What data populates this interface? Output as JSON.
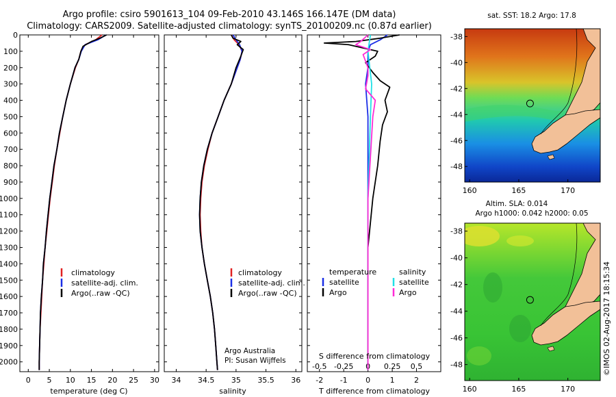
{
  "header": {
    "line1": "Argo profile: csiro 5901613_104 09-Feb-2010 43.146S 166.147E (DM data)",
    "line2": "Climatology: CARS2009. Satellite-adjusted climatology: synTS_20100209.nc (0.87d earlier)"
  },
  "credit": {
    "org": "Argo Australia",
    "pi": "PI: Susan Wijffels"
  },
  "stamp": "©IMOS 02-Aug-2017 18:15:34",
  "colors": {
    "climatology": "#e02020",
    "satellite_adj": "#1a2ee6",
    "argo": "#000000",
    "sat_salinity": "#1fe0e6",
    "argo_salinity": "#ff2bd6",
    "land": "#f2c098"
  },
  "chart_data": [
    {
      "type": "line",
      "id": "temperature",
      "xlabel": "temperature (deg C)",
      "xlim": [
        -2,
        31
      ],
      "ylim": [
        2060,
        0
      ],
      "xticks": [
        0,
        5,
        10,
        15,
        20,
        25,
        30
      ],
      "yticks": [
        0,
        100,
        200,
        300,
        400,
        500,
        600,
        700,
        800,
        900,
        1000,
        1100,
        1200,
        1300,
        1400,
        1500,
        1600,
        1700,
        1800,
        1900,
        2000
      ],
      "legend": [
        "climatology",
        "satellite-adj. clim.",
        "Argo(..raw -QC)"
      ],
      "series": [
        {
          "name": "climatology",
          "points": [
            [
              17.5,
              0
            ],
            [
              16,
              30
            ],
            [
              13.5,
              60
            ],
            [
              12.5,
              100
            ],
            [
              12,
              150
            ],
            [
              11.2,
              200
            ],
            [
              10,
              300
            ],
            [
              9,
              400
            ],
            [
              8.2,
              500
            ],
            [
              7.5,
              600
            ],
            [
              6.8,
              700
            ],
            [
              6.2,
              800
            ],
            [
              5.7,
              900
            ],
            [
              5.2,
              1000
            ],
            [
              4.8,
              1100
            ],
            [
              4.4,
              1200
            ],
            [
              4,
              1300
            ],
            [
              3.7,
              1400
            ],
            [
              3.4,
              1500
            ],
            [
              3.2,
              1600
            ],
            [
              3,
              1700
            ],
            [
              2.8,
              1800
            ],
            [
              2.7,
              1900
            ],
            [
              2.6,
              2000
            ],
            [
              2.6,
              2050
            ]
          ]
        },
        {
          "name": "satellite-adj. clim.",
          "points": [
            [
              18.5,
              0
            ],
            [
              16.5,
              30
            ],
            [
              13.5,
              60
            ],
            [
              12.6,
              100
            ],
            [
              12,
              150
            ],
            [
              11.1,
              200
            ],
            [
              10,
              300
            ],
            [
              9,
              400
            ],
            [
              8.2,
              500
            ],
            [
              7.4,
              600
            ],
            [
              6.8,
              700
            ],
            [
              6.1,
              800
            ],
            [
              5.6,
              900
            ],
            [
              5.1,
              1000
            ],
            [
              4.7,
              1100
            ],
            [
              4.3,
              1200
            ],
            [
              4,
              1300
            ],
            [
              3.6,
              1400
            ],
            [
              3.4,
              1500
            ],
            [
              3.1,
              1600
            ],
            [
              2.9,
              1700
            ],
            [
              2.8,
              1800
            ],
            [
              2.7,
              1900
            ],
            [
              2.6,
              2000
            ],
            [
              2.6,
              2050
            ]
          ]
        },
        {
          "name": "Argo(..raw -QC)",
          "points": [
            [
              18.6,
              0
            ],
            [
              17,
              20
            ],
            [
              15,
              40
            ],
            [
              13,
              70
            ],
            [
              12.5,
              100
            ],
            [
              12,
              150
            ],
            [
              11.1,
              200
            ],
            [
              10,
              300
            ],
            [
              9,
              400
            ],
            [
              8.2,
              500
            ],
            [
              7.4,
              600
            ],
            [
              6.8,
              700
            ],
            [
              6.1,
              800
            ],
            [
              5.6,
              900
            ],
            [
              5.1,
              1000
            ],
            [
              4.7,
              1100
            ],
            [
              4.3,
              1200
            ],
            [
              4,
              1300
            ],
            [
              3.6,
              1400
            ],
            [
              3.4,
              1500
            ],
            [
              3.1,
              1600
            ],
            [
              2.9,
              1700
            ],
            [
              2.8,
              1800
            ],
            [
              2.7,
              1900
            ],
            [
              2.6,
              2000
            ],
            [
              2.6,
              2050
            ]
          ]
        }
      ]
    },
    {
      "type": "line",
      "id": "salinity",
      "xlabel": "salinity",
      "xlim": [
        33.8,
        36.1
      ],
      "ylim": [
        2060,
        0
      ],
      "xticks": [
        34,
        34.5,
        35,
        35.5,
        36
      ],
      "yticks": [
        0,
        100,
        200,
        300,
        400,
        500,
        600,
        700,
        800,
        900,
        1000,
        1100,
        1200,
        1300,
        1400,
        1500,
        1600,
        1700,
        1800,
        1900,
        2000
      ],
      "legend": [
        "climatology",
        "satellite-adj. clim.",
        "Argo(..raw -QC)"
      ],
      "series": [
        {
          "name": "climatology",
          "points": [
            [
              34.92,
              0
            ],
            [
              34.97,
              30
            ],
            [
              35.05,
              60
            ],
            [
              35.1,
              100
            ],
            [
              35.07,
              150
            ],
            [
              35.02,
              200
            ],
            [
              34.92,
              300
            ],
            [
              34.8,
              400
            ],
            [
              34.7,
              500
            ],
            [
              34.6,
              600
            ],
            [
              34.53,
              700
            ],
            [
              34.47,
              800
            ],
            [
              34.43,
              900
            ],
            [
              34.41,
              1000
            ],
            [
              34.4,
              1100
            ],
            [
              34.41,
              1200
            ],
            [
              34.43,
              1300
            ],
            [
              34.47,
              1400
            ],
            [
              34.52,
              1500
            ],
            [
              34.57,
              1600
            ],
            [
              34.61,
              1700
            ],
            [
              34.64,
              1800
            ],
            [
              34.66,
              1900
            ],
            [
              34.68,
              2000
            ],
            [
              34.69,
              2050
            ]
          ]
        },
        {
          "name": "satellite-adj. clim.",
          "points": [
            [
              34.95,
              0
            ],
            [
              35.0,
              30
            ],
            [
              35.06,
              60
            ],
            [
              35.1,
              100
            ],
            [
              35.07,
              150
            ],
            [
              35.02,
              200
            ],
            [
              34.92,
              300
            ],
            [
              34.8,
              400
            ],
            [
              34.7,
              500
            ],
            [
              34.6,
              600
            ],
            [
              34.52,
              700
            ],
            [
              34.46,
              800
            ],
            [
              34.42,
              900
            ],
            [
              34.4,
              1000
            ],
            [
              34.39,
              1100
            ],
            [
              34.4,
              1200
            ],
            [
              34.43,
              1300
            ],
            [
              34.47,
              1400
            ],
            [
              34.52,
              1500
            ],
            [
              34.57,
              1600
            ],
            [
              34.61,
              1700
            ],
            [
              34.64,
              1800
            ],
            [
              34.66,
              1900
            ],
            [
              34.68,
              2000
            ],
            [
              34.69,
              2050
            ]
          ]
        },
        {
          "name": "Argo(..raw -QC)",
          "points": [
            [
              34.92,
              0
            ],
            [
              34.95,
              20
            ],
            [
              35.08,
              40
            ],
            [
              35.02,
              60
            ],
            [
              35.12,
              90
            ],
            [
              35.08,
              130
            ],
            [
              35.0,
              200
            ],
            [
              34.92,
              300
            ],
            [
              34.8,
              400
            ],
            [
              34.7,
              500
            ],
            [
              34.6,
              600
            ],
            [
              34.52,
              700
            ],
            [
              34.46,
              800
            ],
            [
              34.42,
              900
            ],
            [
              34.4,
              1000
            ],
            [
              34.39,
              1100
            ],
            [
              34.4,
              1200
            ],
            [
              34.43,
              1300
            ],
            [
              34.47,
              1400
            ],
            [
              34.52,
              1500
            ],
            [
              34.57,
              1600
            ],
            [
              34.61,
              1700
            ],
            [
              34.64,
              1800
            ],
            [
              34.66,
              1900
            ],
            [
              34.68,
              2000
            ],
            [
              34.69,
              2050
            ]
          ]
        }
      ]
    },
    {
      "type": "line",
      "id": "differences",
      "xlabel": "T difference from climatology",
      "x2label": "S difference from climatology",
      "xlim": [
        -2.5,
        3
      ],
      "ylim": [
        2060,
        0
      ],
      "xticks": [
        -2,
        -1,
        0,
        1,
        2
      ],
      "x2ticks": [
        {
          "label": "-0.5",
          "v": -2
        },
        {
          "label": "-0.25",
          "v": -1
        },
        {
          "label": "0",
          "v": 0
        },
        {
          "label": "0.25",
          "v": 1
        },
        {
          "label": "0.5",
          "v": 2
        }
      ],
      "yticks": [
        0,
        100,
        200,
        300,
        400,
        500,
        600,
        700,
        800,
        900,
        1000,
        1100,
        1200,
        1300,
        1400,
        1500,
        1600,
        1700,
        1800,
        1900,
        2000
      ],
      "legend": {
        "temperature_header": "temperature",
        "salinity_header": "salinity",
        "items": [
          "satellite",
          "Argo",
          "satellite",
          "Argo"
        ]
      },
      "series": [
        {
          "name": "satellite",
          "group": "temperature",
          "points": [
            [
              0.8,
              0
            ],
            [
              0.5,
              30
            ],
            [
              0.1,
              60
            ],
            [
              0,
              100
            ],
            [
              0,
              200
            ],
            [
              -0.1,
              300
            ],
            [
              0,
              500
            ],
            [
              0,
              1000
            ],
            [
              0,
              2050
            ]
          ]
        },
        {
          "name": "Argo",
          "group": "temperature",
          "points": [
            [
              1.3,
              0
            ],
            [
              0.5,
              20
            ],
            [
              -0.5,
              40
            ],
            [
              -1.8,
              50
            ],
            [
              -0.8,
              60
            ],
            [
              -0.2,
              80
            ],
            [
              0.4,
              100
            ],
            [
              0.3,
              130
            ],
            [
              -0.1,
              170
            ],
            [
              0.2,
              230
            ],
            [
              0.5,
              280
            ],
            [
              0.9,
              320
            ],
            [
              0.7,
              400
            ],
            [
              0.8,
              470
            ],
            [
              0.6,
              550
            ],
            [
              0.5,
              650
            ],
            [
              0.4,
              800
            ],
            [
              0.2,
              1000
            ],
            [
              0,
              1300
            ],
            [
              0,
              2050
            ]
          ]
        },
        {
          "name": "satellite",
          "group": "salinity",
          "points": [
            [
              0.1,
              0
            ],
            [
              0.05,
              50
            ],
            [
              0,
              100
            ],
            [
              0.15,
              300
            ],
            [
              0.1,
              500
            ],
            [
              0,
              1000
            ],
            [
              0,
              2050
            ]
          ]
        },
        {
          "name": "Argo",
          "group": "salinity",
          "points": [
            [
              0,
              0
            ],
            [
              -0.3,
              40
            ],
            [
              -0.5,
              60
            ],
            [
              0.1,
              90
            ],
            [
              -0.2,
              120
            ],
            [
              0,
              200
            ],
            [
              0,
              250
            ],
            [
              -0.1,
              330
            ],
            [
              0.3,
              400
            ],
            [
              0.2,
              500
            ],
            [
              0,
              1000
            ],
            [
              0,
              2050
            ]
          ]
        }
      ]
    },
    {
      "type": "heatmap",
      "id": "sst-map",
      "title": "sat. SST: 18.2  Argo: 17.8",
      "xlim": [
        159.5,
        173.3
      ],
      "ylim": [
        -49.2,
        -37.4
      ],
      "xticks": [
        160,
        165,
        170
      ],
      "yticks": [
        -38,
        -40,
        -42,
        -44,
        -46,
        -48
      ],
      "marker": {
        "lon": 166.15,
        "lat": -43.15
      }
    },
    {
      "type": "heatmap",
      "id": "sla-map",
      "title": "Altim. SLA: 0.014",
      "subtitle": "Argo h1000: 0.042 h2000: 0.05",
      "xlim": [
        159.5,
        173.3
      ],
      "ylim": [
        -49.2,
        -37.4
      ],
      "xticks": [
        160,
        165,
        170
      ],
      "yticks": [
        -38,
        -40,
        -42,
        -44,
        -46,
        -48
      ],
      "marker": {
        "lon": 166.15,
        "lat": -43.15
      }
    }
  ]
}
